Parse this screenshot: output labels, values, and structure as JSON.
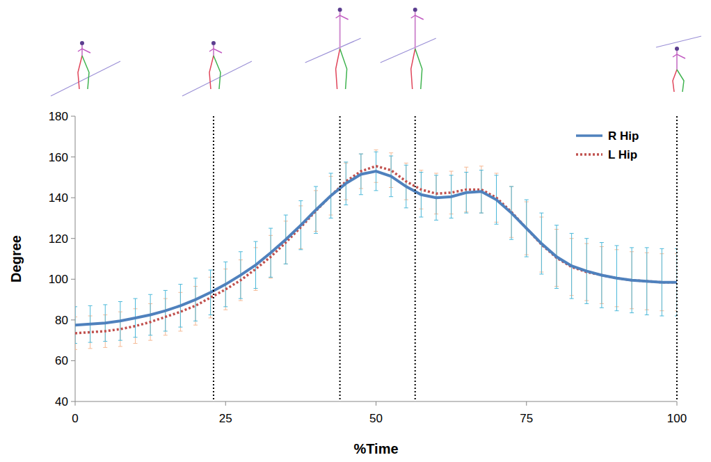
{
  "chart_data": {
    "type": "line",
    "x_label": "%Time",
    "y_label": "Degree",
    "x": [
      0,
      2.5,
      5,
      7.5,
      10,
      12.5,
      15,
      17.5,
      20,
      22.5,
      25,
      27.5,
      30,
      32.5,
      35,
      37.5,
      40,
      42.5,
      45,
      47.5,
      50,
      52.5,
      55,
      57.5,
      60,
      62.5,
      65,
      67.5,
      70,
      72.5,
      75,
      77.5,
      80,
      82.5,
      85,
      87.5,
      90,
      92.5,
      95,
      97.5,
      100
    ],
    "series": [
      {
        "name": "R Hip",
        "color": "#4f81bd",
        "line_style": "solid",
        "values": [
          77.5,
          78,
          78.5,
          79.5,
          81,
          82.5,
          84.5,
          87,
          90,
          93.5,
          97.5,
          102,
          107,
          113,
          119.5,
          126.5,
          134,
          141,
          147,
          151.5,
          153,
          150.5,
          145.5,
          141.5,
          140,
          140.5,
          142.5,
          143,
          139,
          132.5,
          125,
          117.5,
          111,
          106.5,
          104,
          102,
          100.5,
          99.5,
          99,
          98.5,
          98.5
        ],
        "errors": [
          9,
          9,
          9,
          9.5,
          9.5,
          10,
          10,
          10.5,
          10.5,
          11,
          11,
          11.5,
          11.5,
          12,
          12,
          12,
          11.5,
          11,
          10.5,
          10,
          9.5,
          10,
          10.5,
          11,
          11,
          10.5,
          10,
          10.5,
          12,
          13,
          14,
          15,
          15.5,
          16,
          16,
          16,
          16,
          16,
          16.5,
          16.5,
          16.5
        ]
      },
      {
        "name": "L Hip",
        "color": "#c0504d",
        "line_style": "dotted",
        "values": [
          73.5,
          74,
          74.5,
          75.5,
          77,
          79,
          81.5,
          84,
          87,
          91,
          95,
          99.5,
          105,
          111,
          118,
          125.5,
          133.5,
          141,
          148,
          153,
          155.5,
          153.5,
          148,
          144,
          142,
          142.5,
          144,
          144,
          140,
          133,
          125,
          117,
          110.5,
          106,
          103.5,
          102,
          100.5,
          99.5,
          99,
          98.5,
          98.5
        ],
        "errors": [
          8,
          8,
          8,
          8.5,
          8.5,
          9,
          9,
          9.5,
          9.5,
          10,
          10,
          10,
          10.5,
          10.5,
          10.5,
          10.5,
          10,
          9.5,
          9,
          8.5,
          8,
          8.5,
          9,
          9.5,
          10,
          10.5,
          11,
          11.5,
          12,
          12.5,
          13,
          13.5,
          14,
          14,
          14,
          14,
          14,
          14,
          14,
          14,
          14
        ]
      }
    ],
    "phase_lines": [
      23,
      44,
      56.5,
      100
    ],
    "xlim": [
      0,
      100
    ],
    "xticks": [
      0,
      25,
      50,
      75,
      100
    ],
    "ylim": [
      40,
      180
    ],
    "yticks": [
      40,
      60,
      80,
      100,
      120,
      140,
      160,
      180
    ],
    "grid": false,
    "legend": "upper right"
  }
}
